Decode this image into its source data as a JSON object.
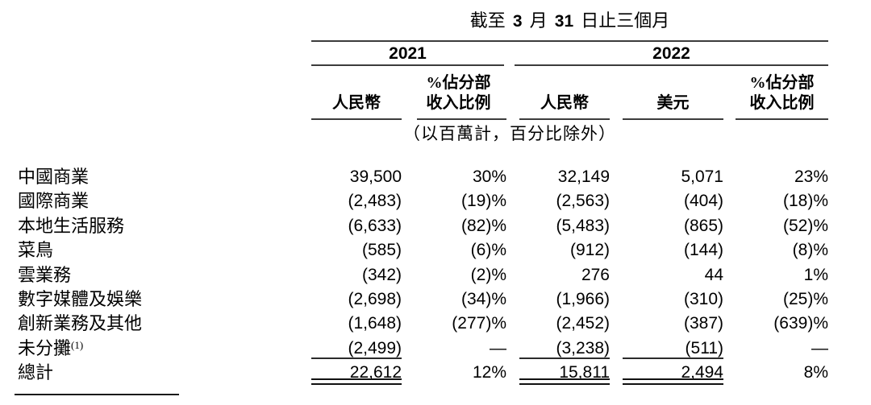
{
  "table": {
    "caption": {
      "pre": "截至",
      "month": "3",
      "mid": "月",
      "day": "31",
      "post": "日止三個月"
    },
    "year_groups": [
      {
        "label": "2021"
      },
      {
        "label": "2022"
      }
    ],
    "columns": [
      {
        "id": "rmb-2021",
        "line1": "",
        "line2": "人民幣"
      },
      {
        "id": "pct-2021",
        "line1": "%佔分部",
        "line2": "收入比例"
      },
      {
        "id": "rmb-2022",
        "line1": "",
        "line2": "人民幣"
      },
      {
        "id": "usd-2022",
        "line1": "",
        "line2": "美元"
      },
      {
        "id": "pct-2022",
        "line1": "%佔分部",
        "line2": "收入比例"
      }
    ],
    "note": "（以百萬計，百分比除外）",
    "rows": [
      {
        "label": "中國商業",
        "sup": "",
        "values": [
          "39,500",
          "30%",
          "32,149",
          "5,071",
          "23%"
        ]
      },
      {
        "label": "國際商業",
        "sup": "",
        "values": [
          "(2,483)",
          "(19)%",
          "(2,563)",
          "(404)",
          "(18)%"
        ]
      },
      {
        "label": "本地生活服務",
        "sup": "",
        "values": [
          "(6,633)",
          "(82)%",
          "(5,483)",
          "(865)",
          "(52)%"
        ]
      },
      {
        "label": "菜鳥",
        "sup": "",
        "values": [
          "(585)",
          "(6)%",
          "(912)",
          "(144)",
          "(8)%"
        ]
      },
      {
        "label": "雲業務",
        "sup": "",
        "values": [
          "(342)",
          "(2)%",
          "276",
          "44",
          "1%"
        ]
      },
      {
        "label": "數字媒體及娛樂",
        "sup": "",
        "values": [
          "(2,698)",
          "(34)%",
          "(1,966)",
          "(310)",
          "(25)%"
        ]
      },
      {
        "label": "創新業務及其他",
        "sup": "",
        "values": [
          "(1,648)",
          "(277)%",
          "(2,452)",
          "(387)",
          "(639)%"
        ]
      },
      {
        "label": "未分攤",
        "sup": "(1)",
        "values": [
          "(2,499)",
          "—",
          "(3,238)",
          "(511)",
          "—"
        ]
      },
      {
        "label": "總計",
        "sup": "",
        "values": [
          "22,612",
          "12%",
          "15,811",
          "2,494",
          "8%"
        ]
      }
    ]
  }
}
